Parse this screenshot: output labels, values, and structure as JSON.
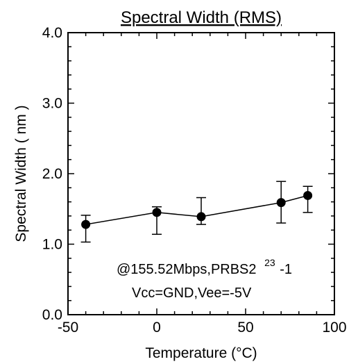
{
  "chart_data": {
    "type": "line",
    "title": "Spectral Width (RMS)",
    "xlabel": "Temperature (°C)",
    "ylabel": "Spectral Width ( nm )",
    "xlim": [
      -50,
      100
    ],
    "ylim": [
      0.0,
      4.0
    ],
    "x_ticks": [
      -50,
      0,
      50,
      100
    ],
    "y_ticks": [
      0.0,
      1.0,
      2.0,
      3.0,
      4.0
    ],
    "x_tick_labels": [
      "-50",
      "0",
      "50",
      "100"
    ],
    "y_tick_labels": [
      "0.0",
      "1.0",
      "2.0",
      "3.0",
      "4.0"
    ],
    "grid": false,
    "series": [
      {
        "x": [
          -40,
          0,
          25,
          70,
          85
        ],
        "y": [
          1.28,
          1.45,
          1.39,
          1.59,
          1.69
        ],
        "y_err_low": [
          1.03,
          1.14,
          1.28,
          1.3,
          1.45
        ],
        "y_err_high": [
          1.41,
          1.53,
          1.66,
          1.89,
          1.82
        ]
      }
    ],
    "annotations": {
      "line1": "@155.52Mbps,PRBS2",
      "line1_sup": "23",
      "line1_tail": "-1",
      "line2": "Vcc=GND,Vee=-5V"
    }
  }
}
